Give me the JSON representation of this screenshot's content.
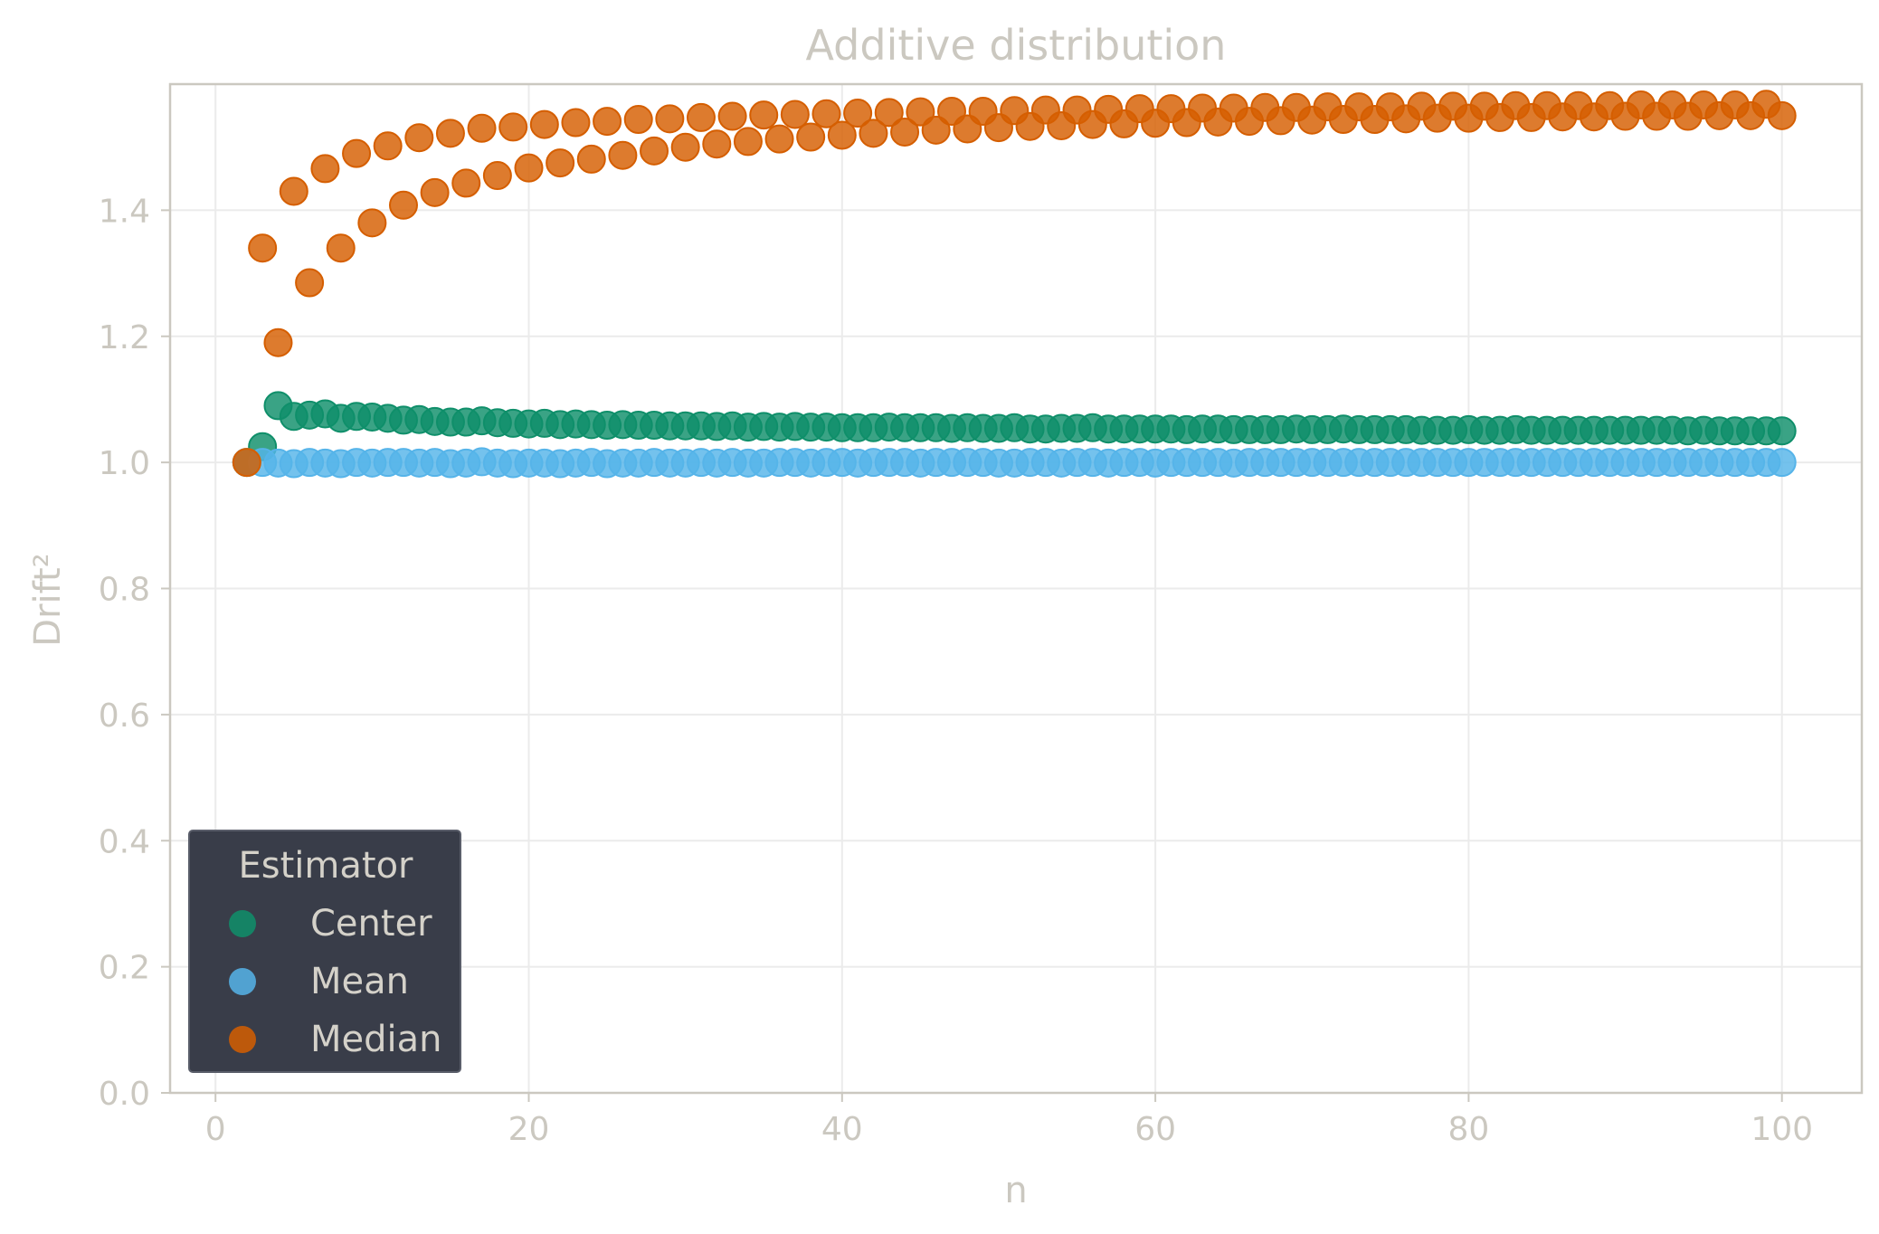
{
  "chart_data": {
    "type": "scatter",
    "title": "Additive distribution",
    "xlabel": "n",
    "ylabel": "Drift²",
    "xlim": [
      -2.9,
      105.1
    ],
    "ylim": [
      0.0,
      1.6
    ],
    "xticks": [
      0,
      20,
      40,
      60,
      80,
      100
    ],
    "xtick_labels": [
      "0",
      "20",
      "40",
      "60",
      "80",
      "100"
    ],
    "yticks": [
      0.0,
      0.2,
      0.4,
      0.6,
      0.8,
      1.0,
      1.2,
      1.4
    ],
    "ytick_labels": [
      "0.0",
      "0.2",
      "0.4",
      "0.6",
      "0.8",
      "1.0",
      "1.2",
      "1.4"
    ],
    "grid": true,
    "legend": {
      "title": "Estimator",
      "placement": "lower-left"
    },
    "series": [
      {
        "name": "Center",
        "color": "#0f8f6a",
        "x": [
          2,
          3,
          4,
          5,
          6,
          7,
          8,
          9,
          10,
          11,
          12,
          13,
          14,
          15,
          16,
          17,
          18,
          19,
          20,
          21,
          22,
          23,
          24,
          25,
          26,
          27,
          28,
          29,
          30,
          31,
          32,
          33,
          34,
          35,
          36,
          37,
          38,
          39,
          40,
          41,
          42,
          43,
          44,
          45,
          46,
          47,
          48,
          49,
          50,
          51,
          52,
          53,
          54,
          55,
          56,
          57,
          58,
          59,
          60,
          61,
          62,
          63,
          64,
          65,
          66,
          67,
          68,
          69,
          70,
          71,
          72,
          73,
          74,
          75,
          76,
          77,
          78,
          79,
          80,
          81,
          82,
          83,
          84,
          85,
          86,
          87,
          88,
          89,
          90,
          91,
          92,
          93,
          94,
          95,
          96,
          97,
          98,
          99,
          100
        ],
        "y": [
          1.0,
          1.025,
          1.09,
          1.073,
          1.075,
          1.077,
          1.07,
          1.073,
          1.072,
          1.07,
          1.067,
          1.068,
          1.065,
          1.064,
          1.064,
          1.066,
          1.063,
          1.062,
          1.061,
          1.062,
          1.06,
          1.061,
          1.06,
          1.059,
          1.06,
          1.059,
          1.059,
          1.058,
          1.058,
          1.058,
          1.057,
          1.058,
          1.056,
          1.057,
          1.056,
          1.057,
          1.056,
          1.056,
          1.055,
          1.055,
          1.055,
          1.056,
          1.055,
          1.055,
          1.055,
          1.054,
          1.055,
          1.054,
          1.054,
          1.055,
          1.053,
          1.053,
          1.054,
          1.054,
          1.055,
          1.053,
          1.053,
          1.053,
          1.053,
          1.053,
          1.052,
          1.053,
          1.053,
          1.052,
          1.052,
          1.052,
          1.052,
          1.053,
          1.052,
          1.052,
          1.053,
          1.052,
          1.052,
          1.052,
          1.052,
          1.051,
          1.051,
          1.051,
          1.052,
          1.051,
          1.051,
          1.052,
          1.051,
          1.051,
          1.051,
          1.051,
          1.051,
          1.051,
          1.051,
          1.051,
          1.051,
          1.051,
          1.05,
          1.051,
          1.05,
          1.05,
          1.05,
          1.05,
          1.05
        ]
      },
      {
        "name": "Mean",
        "color": "#56b4e9",
        "x": [
          2,
          3,
          4,
          5,
          6,
          7,
          8,
          9,
          10,
          11,
          12,
          13,
          14,
          15,
          16,
          17,
          18,
          19,
          20,
          21,
          22,
          23,
          24,
          25,
          26,
          27,
          28,
          29,
          30,
          31,
          32,
          33,
          34,
          35,
          36,
          37,
          38,
          39,
          40,
          41,
          42,
          43,
          44,
          45,
          46,
          47,
          48,
          49,
          50,
          51,
          52,
          53,
          54,
          55,
          56,
          57,
          58,
          59,
          60,
          61,
          62,
          63,
          64,
          65,
          66,
          67,
          68,
          69,
          70,
          71,
          72,
          73,
          74,
          75,
          76,
          77,
          78,
          79,
          80,
          81,
          82,
          83,
          84,
          85,
          86,
          87,
          88,
          89,
          90,
          91,
          92,
          93,
          94,
          95,
          96,
          97,
          98,
          99,
          100
        ],
        "y": [
          1.0,
          1.0,
          0.999,
          0.998,
          1.0,
          0.999,
          0.998,
          1.0,
          0.999,
          1.0,
          1.0,
          0.999,
          1.0,
          0.998,
          0.999,
          1.001,
          0.999,
          0.998,
          0.999,
          0.999,
          0.998,
          0.999,
          1.0,
          0.998,
          0.999,
          0.999,
          1.0,
          0.999,
          0.999,
          1.0,
          0.999,
          1.0,
          0.999,
          0.999,
          1.0,
          1.0,
          0.999,
          1.0,
          1.0,
          0.999,
          1.0,
          1.0,
          1.0,
          0.999,
          1.0,
          1.0,
          1.0,
          1.0,
          0.999,
          0.999,
          1.0,
          1.0,
          0.999,
          1.0,
          1.0,
          0.999,
          1.0,
          1.0,
          0.999,
          1.0,
          1.0,
          1.0,
          1.0,
          0.999,
          1.0,
          1.0,
          1.0,
          1.0,
          1.0,
          1.0,
          1.0,
          1.0,
          1.0,
          1.0,
          1.0,
          1.0,
          1.0,
          1.0,
          1.0,
          1.0,
          1.0,
          1.0,
          1.0,
          1.0,
          1.0,
          1.0,
          1.0,
          1.0,
          1.0,
          1.0,
          1.0,
          1.0,
          1.0,
          1.0,
          1.0,
          1.0,
          1.0,
          1.0,
          1.0
        ]
      },
      {
        "name": "Median",
        "color": "#d55e00",
        "x": [
          2,
          3,
          4,
          5,
          6,
          7,
          8,
          9,
          10,
          11,
          12,
          13,
          14,
          15,
          16,
          17,
          18,
          19,
          20,
          21,
          22,
          23,
          24,
          25,
          26,
          27,
          28,
          29,
          30,
          31,
          32,
          33,
          34,
          35,
          36,
          37,
          38,
          39,
          40,
          41,
          42,
          43,
          44,
          45,
          46,
          47,
          48,
          49,
          50,
          51,
          52,
          53,
          54,
          55,
          56,
          57,
          58,
          59,
          60,
          61,
          62,
          63,
          64,
          65,
          66,
          67,
          68,
          69,
          70,
          71,
          72,
          73,
          74,
          75,
          76,
          77,
          78,
          79,
          80,
          81,
          82,
          83,
          84,
          85,
          86,
          87,
          88,
          89,
          90,
          91,
          92,
          93,
          94,
          95,
          96,
          97,
          98,
          99,
          100
        ],
        "y": [
          1.0,
          1.34,
          1.19,
          1.43,
          1.285,
          1.466,
          1.34,
          1.49,
          1.38,
          1.502,
          1.408,
          1.515,
          1.428,
          1.522,
          1.443,
          1.53,
          1.455,
          1.532,
          1.467,
          1.536,
          1.475,
          1.539,
          1.481,
          1.541,
          1.487,
          1.544,
          1.494,
          1.545,
          1.5,
          1.547,
          1.505,
          1.549,
          1.509,
          1.551,
          1.513,
          1.552,
          1.516,
          1.553,
          1.519,
          1.554,
          1.522,
          1.555,
          1.524,
          1.556,
          1.527,
          1.557,
          1.529,
          1.557,
          1.531,
          1.558,
          1.533,
          1.559,
          1.534,
          1.559,
          1.536,
          1.56,
          1.537,
          1.561,
          1.538,
          1.561,
          1.539,
          1.562,
          1.54,
          1.562,
          1.541,
          1.563,
          1.542,
          1.563,
          1.543,
          1.564,
          1.544,
          1.564,
          1.544,
          1.564,
          1.545,
          1.565,
          1.546,
          1.565,
          1.546,
          1.565,
          1.547,
          1.566,
          1.547,
          1.566,
          1.548,
          1.566,
          1.548,
          1.566,
          1.549,
          1.567,
          1.549,
          1.567,
          1.549,
          1.567,
          1.55,
          1.567,
          1.55,
          1.568,
          1.55
        ]
      }
    ]
  }
}
